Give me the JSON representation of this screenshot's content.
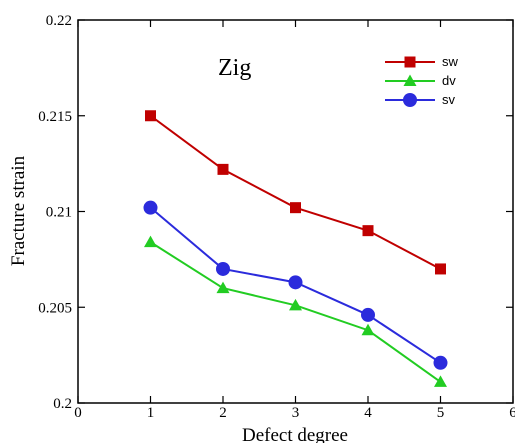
{
  "chart_data": {
    "type": "line",
    "xlabel": "Defect degree",
    "ylabel": "Fracture strain",
    "xlim": [
      0,
      6
    ],
    "ylim": [
      0.2,
      0.22
    ],
    "x_ticks": [
      "0",
      "1",
      "2",
      "3",
      "4",
      "5",
      "6"
    ],
    "y_ticks": [
      "0.2",
      "0.205",
      "0.21",
      "0.215",
      "0.22"
    ],
    "annotation": "Zig",
    "legend_position": "top-right",
    "grid": false,
    "x": [
      1,
      2,
      3,
      4,
      5
    ],
    "series": [
      {
        "name": "sw",
        "marker": "square",
        "color": "#c00000",
        "values": [
          0.215,
          0.2122,
          0.2102,
          0.209,
          0.207
        ]
      },
      {
        "name": "dv",
        "marker": "triangle",
        "color": "#22cc22",
        "values": [
          0.2084,
          0.206,
          0.2051,
          0.2038,
          0.2011
        ]
      },
      {
        "name": "sv",
        "marker": "circle",
        "color": "#2b2bdc",
        "values": [
          0.2102,
          0.207,
          0.2063,
          0.2046,
          0.2021
        ]
      }
    ]
  }
}
